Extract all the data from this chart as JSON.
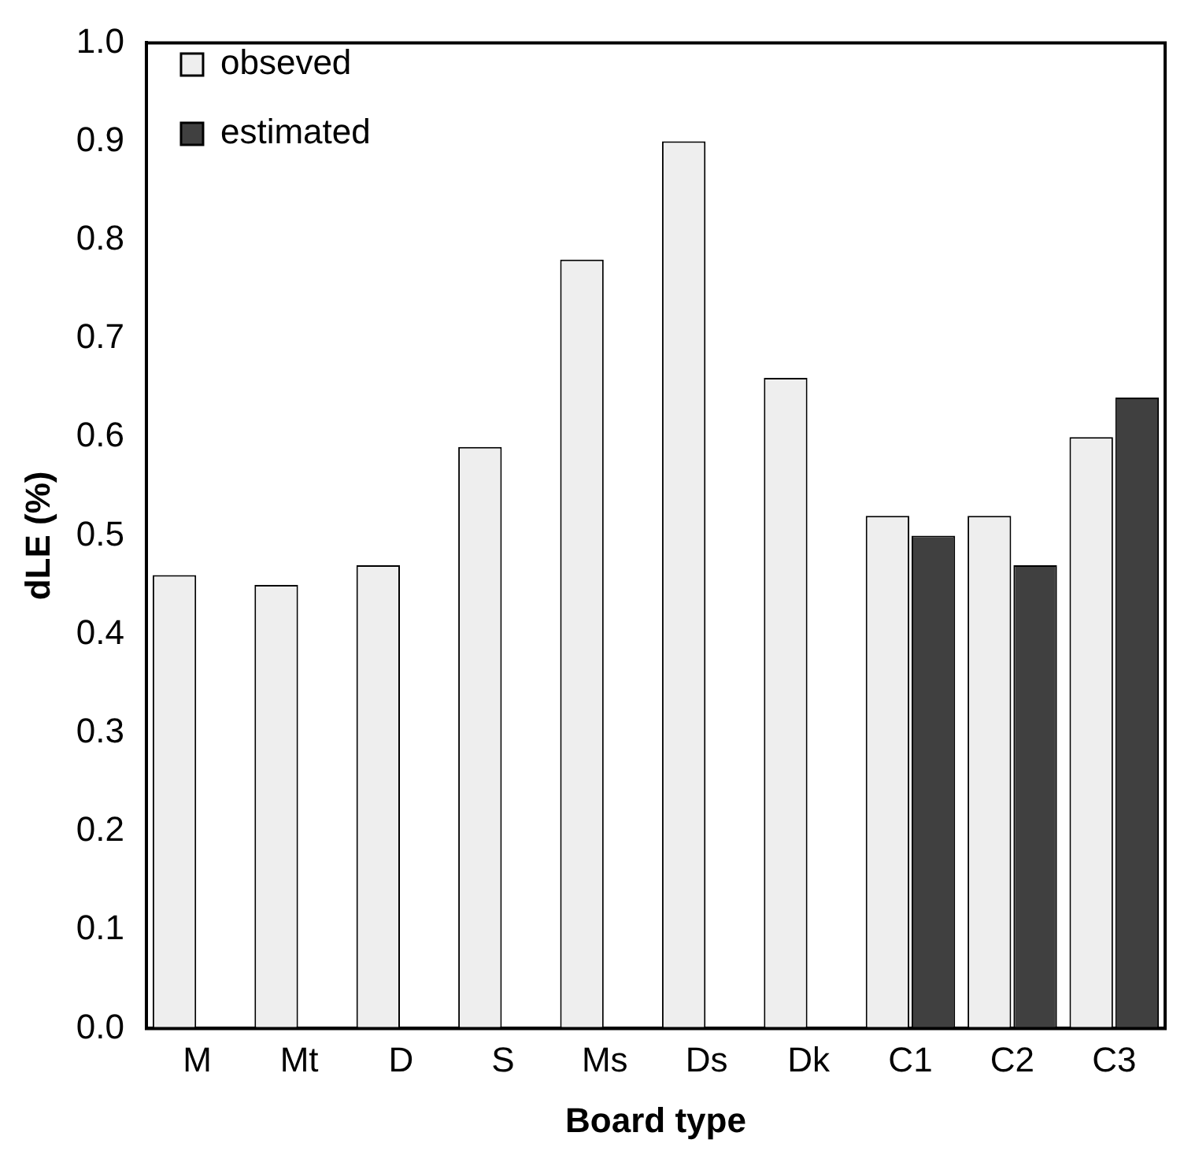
{
  "chart_data": {
    "type": "bar",
    "xlabel": "Board type",
    "ylabel": "dLE (%)",
    "categories": [
      "M",
      "Mt",
      "D",
      "S",
      "Ms",
      "Ds",
      "Dk",
      "C1",
      "C2",
      "C3"
    ],
    "series": [
      {
        "name": "obseved",
        "color": "#eeeeee",
        "values": [
          0.46,
          0.45,
          0.47,
          0.59,
          0.78,
          0.9,
          0.66,
          0.52,
          0.52,
          0.6
        ]
      },
      {
        "name": "estimated",
        "color": "#404040",
        "values": [
          null,
          null,
          null,
          null,
          null,
          null,
          null,
          0.5,
          0.47,
          0.64
        ]
      }
    ],
    "ylim": [
      0,
      1
    ],
    "yticks": [
      {
        "value": 0,
        "label": "0.0"
      },
      {
        "value": 0.1,
        "label": "0.1"
      },
      {
        "value": 0.2,
        "label": "0.2"
      },
      {
        "value": 0.3,
        "label": "0.3"
      },
      {
        "value": 0.4,
        "label": "0.4"
      },
      {
        "value": 0.5,
        "label": "0.5"
      },
      {
        "value": 0.6,
        "label": "0.6"
      },
      {
        "value": 0.7,
        "label": "0.7"
      },
      {
        "value": 0.8,
        "label": "0.8"
      },
      {
        "value": 0.9,
        "label": "0.9"
      },
      {
        "value": 1,
        "label": "1.0"
      }
    ],
    "grid": false,
    "legend": "top left"
  }
}
